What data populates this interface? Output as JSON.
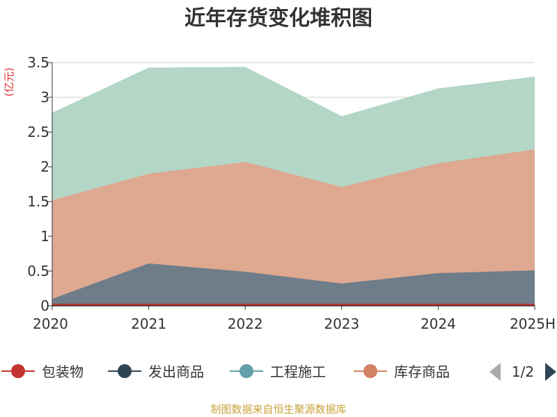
{
  "chart_data": {
    "type": "area",
    "stacked": true,
    "title": "近年存货变化堆积图",
    "unit_label": "(亿元)",
    "categories": [
      "2020",
      "2021",
      "2022",
      "2023",
      "2024",
      "2025H"
    ],
    "ylim": [
      0,
      3.5
    ],
    "yticks": [
      "0",
      "0.5",
      "1",
      "1.5",
      "2",
      "2.5",
      "3",
      "3.5"
    ],
    "grid": true,
    "legend_position": "bottom",
    "series": [
      {
        "name": "包装物",
        "color": "#c23531",
        "values": [
          0.03,
          0.03,
          0.03,
          0.03,
          0.03,
          0.03
        ]
      },
      {
        "name": "发出商品",
        "color": "#2f4554",
        "values": [
          0.07,
          0.58,
          0.46,
          0.29,
          0.44,
          0.48
        ]
      },
      {
        "name": "库存商品",
        "color": "#d48265",
        "values": [
          1.42,
          1.29,
          1.58,
          1.39,
          1.58,
          1.74
        ]
      },
      {
        "name": "工程施工",
        "color": "#61a0a8",
        "values": [
          1.25,
          1.52,
          1.36,
          1.01,
          1.07,
          1.04
        ]
      }
    ],
    "stack_order": [
      "包装物",
      "发出商品",
      "库存商品",
      "工程施工"
    ],
    "area_fill_colors": {
      "包装物": "#c23531",
      "发出商品": "#6e7d89",
      "库存商品": "#dfa891",
      "工程施工": "#b3d6c6"
    }
  },
  "legend": {
    "items": [
      {
        "name": "包装物",
        "color": "#c23531"
      },
      {
        "name": "发出商品",
        "color": "#2f4554"
      },
      {
        "name": "工程施工",
        "color": "#61a0a8"
      },
      {
        "name": "库存商品",
        "color": "#d48265"
      }
    ],
    "page_indicator": "1/2",
    "prev_icon": "triangle-left-icon",
    "next_icon": "triangle-right-icon"
  },
  "footer": {
    "source": "制图数据来自恒生聚源数据库"
  }
}
